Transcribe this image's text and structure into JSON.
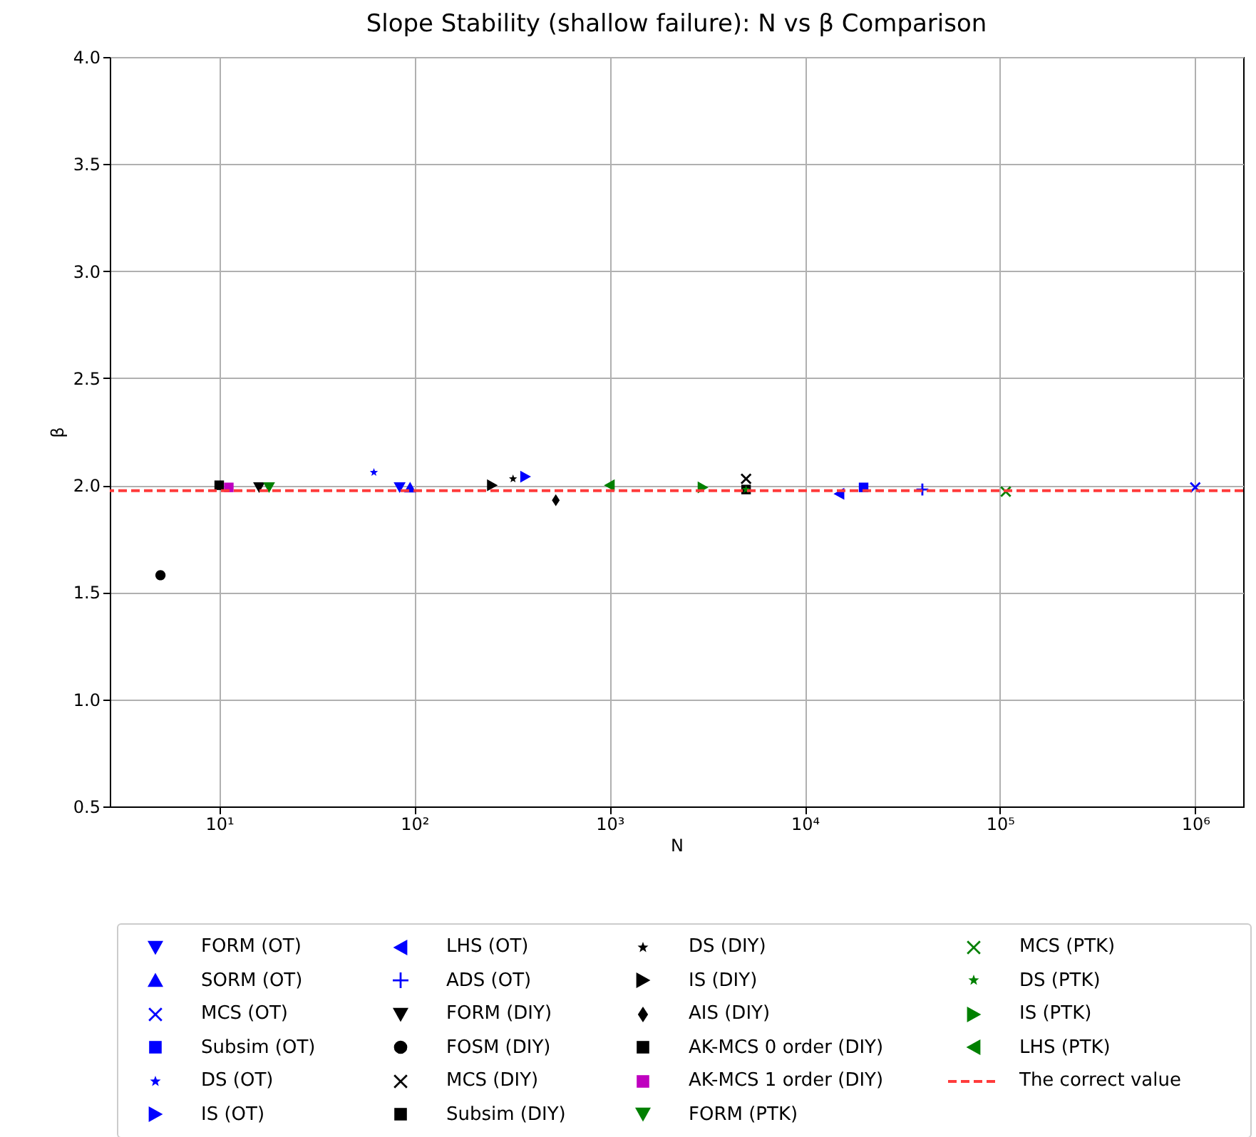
{
  "chart_data": {
    "type": "scatter",
    "title": "Slope Stability (shallow failure): N vs β Comparison",
    "xlabel": "N",
    "ylabel": "β",
    "log": "x",
    "grid": true,
    "legend": "bottom",
    "xlim": [
      2.75,
      1760000
    ],
    "xticks": [
      {
        "value": 10,
        "label": "10¹"
      },
      {
        "value": 100,
        "label": "10²"
      },
      {
        "value": 1000,
        "label": "10³"
      },
      {
        "value": 10000,
        "label": "10⁴"
      },
      {
        "value": 100000,
        "label": "10⁵"
      },
      {
        "value": 1000000,
        "label": "10⁶"
      }
    ],
    "ylim": [
      0.5,
      4.0
    ],
    "yticks": [
      0.5,
      {
        "value": 1,
        "label": "1.0"
      },
      1.5,
      {
        "value": 2,
        "label": "2.0"
      },
      2.5,
      {
        "value": 3,
        "label": "3.0"
      },
      3.5,
      {
        "value": 4,
        "label": "4.0"
      }
    ],
    "series": [
      {
        "name": "FORM (OT)",
        "color": "#0000ff",
        "marker": "triangle-down",
        "x": [
          84
        ],
        "values": [
          1.99
        ]
      },
      {
        "name": "SORM (OT)",
        "color": "#0000ff",
        "marker": "triangle",
        "x": [
          95
        ],
        "values": [
          1.99
        ]
      },
      {
        "name": "MCS (OT)",
        "color": "#0000ff",
        "marker": "cross",
        "x": [
          1000000
        ],
        "values": [
          1.99
        ]
      },
      {
        "name": "Subsim (OT)",
        "color": "#0000ff",
        "marker": "square",
        "x": [
          20000
        ],
        "values": [
          1.99
        ]
      },
      {
        "name": "DS (OT)",
        "color": "#0000ff",
        "marker": "star",
        "x": [
          62
        ],
        "values": [
          2.06
        ]
      },
      {
        "name": "IS (OT)",
        "color": "#0000ff",
        "marker": "triangle-right",
        "x": [
          370
        ],
        "values": [
          2.04
        ]
      },
      {
        "name": "LHS (OT)",
        "color": "#0000ff",
        "marker": "triangle-left",
        "x": [
          15000
        ],
        "values": [
          1.96
        ]
      },
      {
        "name": "ADS (OT)",
        "color": "#0000ff",
        "marker": "plus",
        "x": [
          40000
        ],
        "values": [
          1.98
        ]
      },
      {
        "name": "FORM (DIY)",
        "color": "#000000",
        "marker": "triangle-down",
        "x": [
          16
        ],
        "values": [
          1.99
        ]
      },
      {
        "name": "FOSM (DIY)",
        "color": "#000000",
        "marker": "circle",
        "x": [
          5
        ],
        "values": [
          1.58
        ]
      },
      {
        "name": "MCS (DIY)",
        "color": "#000000",
        "marker": "cross",
        "x": [
          5000
        ],
        "values": [
          2.03
        ]
      },
      {
        "name": "Subsim (DIY)",
        "color": "#000000",
        "marker": "square",
        "x": [
          5000
        ],
        "values": [
          1.98
        ]
      },
      {
        "name": "DS (DIY)",
        "color": "#000000",
        "marker": "star",
        "x": [
          320
        ],
        "values": [
          2.03
        ]
      },
      {
        "name": "IS (DIY)",
        "color": "#000000",
        "marker": "triangle-right",
        "x": [
          250
        ],
        "values": [
          2.0
        ]
      },
      {
        "name": "AIS (DIY)",
        "color": "#000000",
        "marker": "diamond",
        "x": [
          530
        ],
        "values": [
          1.93
        ]
      },
      {
        "name": "AK-MCS 0 order (DIY)",
        "color": "#000000",
        "marker": "square",
        "x": [
          10
        ],
        "values": [
          2.0
        ]
      },
      {
        "name": "AK-MCS 1 order (DIY)",
        "color": "#bf00bf",
        "marker": "square",
        "x": [
          11.2
        ],
        "values": [
          1.99
        ]
      },
      {
        "name": "FORM (PTK)",
        "color": "#008000",
        "marker": "triangle-down",
        "x": [
          18
        ],
        "values": [
          1.99
        ]
      },
      {
        "name": "MCS (PTK)",
        "color": "#008000",
        "marker": "cross",
        "x": [
          107000
        ],
        "values": [
          1.97
        ]
      },
      {
        "name": "DS (PTK)",
        "color": "#008000",
        "marker": "star",
        "x": [
          5000
        ],
        "values": [
          1.98
        ]
      },
      {
        "name": "IS (PTK)",
        "color": "#008000",
        "marker": "triangle-right",
        "x": [
          3000
        ],
        "values": [
          1.99
        ]
      },
      {
        "name": "LHS (PTK)",
        "color": "#008000",
        "marker": "triangle-left",
        "x": [
          1000
        ],
        "values": [
          2.0
        ]
      }
    ],
    "ref_lines": [
      {
        "axis": "y",
        "value": 1.975,
        "label": "The correct value",
        "color": "#ff3b3b",
        "line_style": "dashed"
      }
    ]
  }
}
